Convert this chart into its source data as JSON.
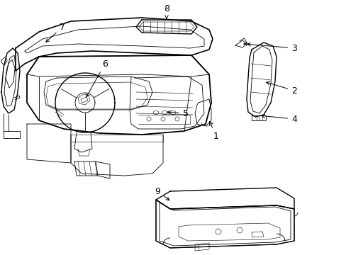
{
  "background_color": "#ffffff",
  "line_color": "#000000",
  "figsize": [
    4.89,
    3.6
  ],
  "dpi": 100,
  "font_size": 9,
  "lw_main": 1.0,
  "lw_detail": 0.6,
  "lw_thin": 0.4
}
